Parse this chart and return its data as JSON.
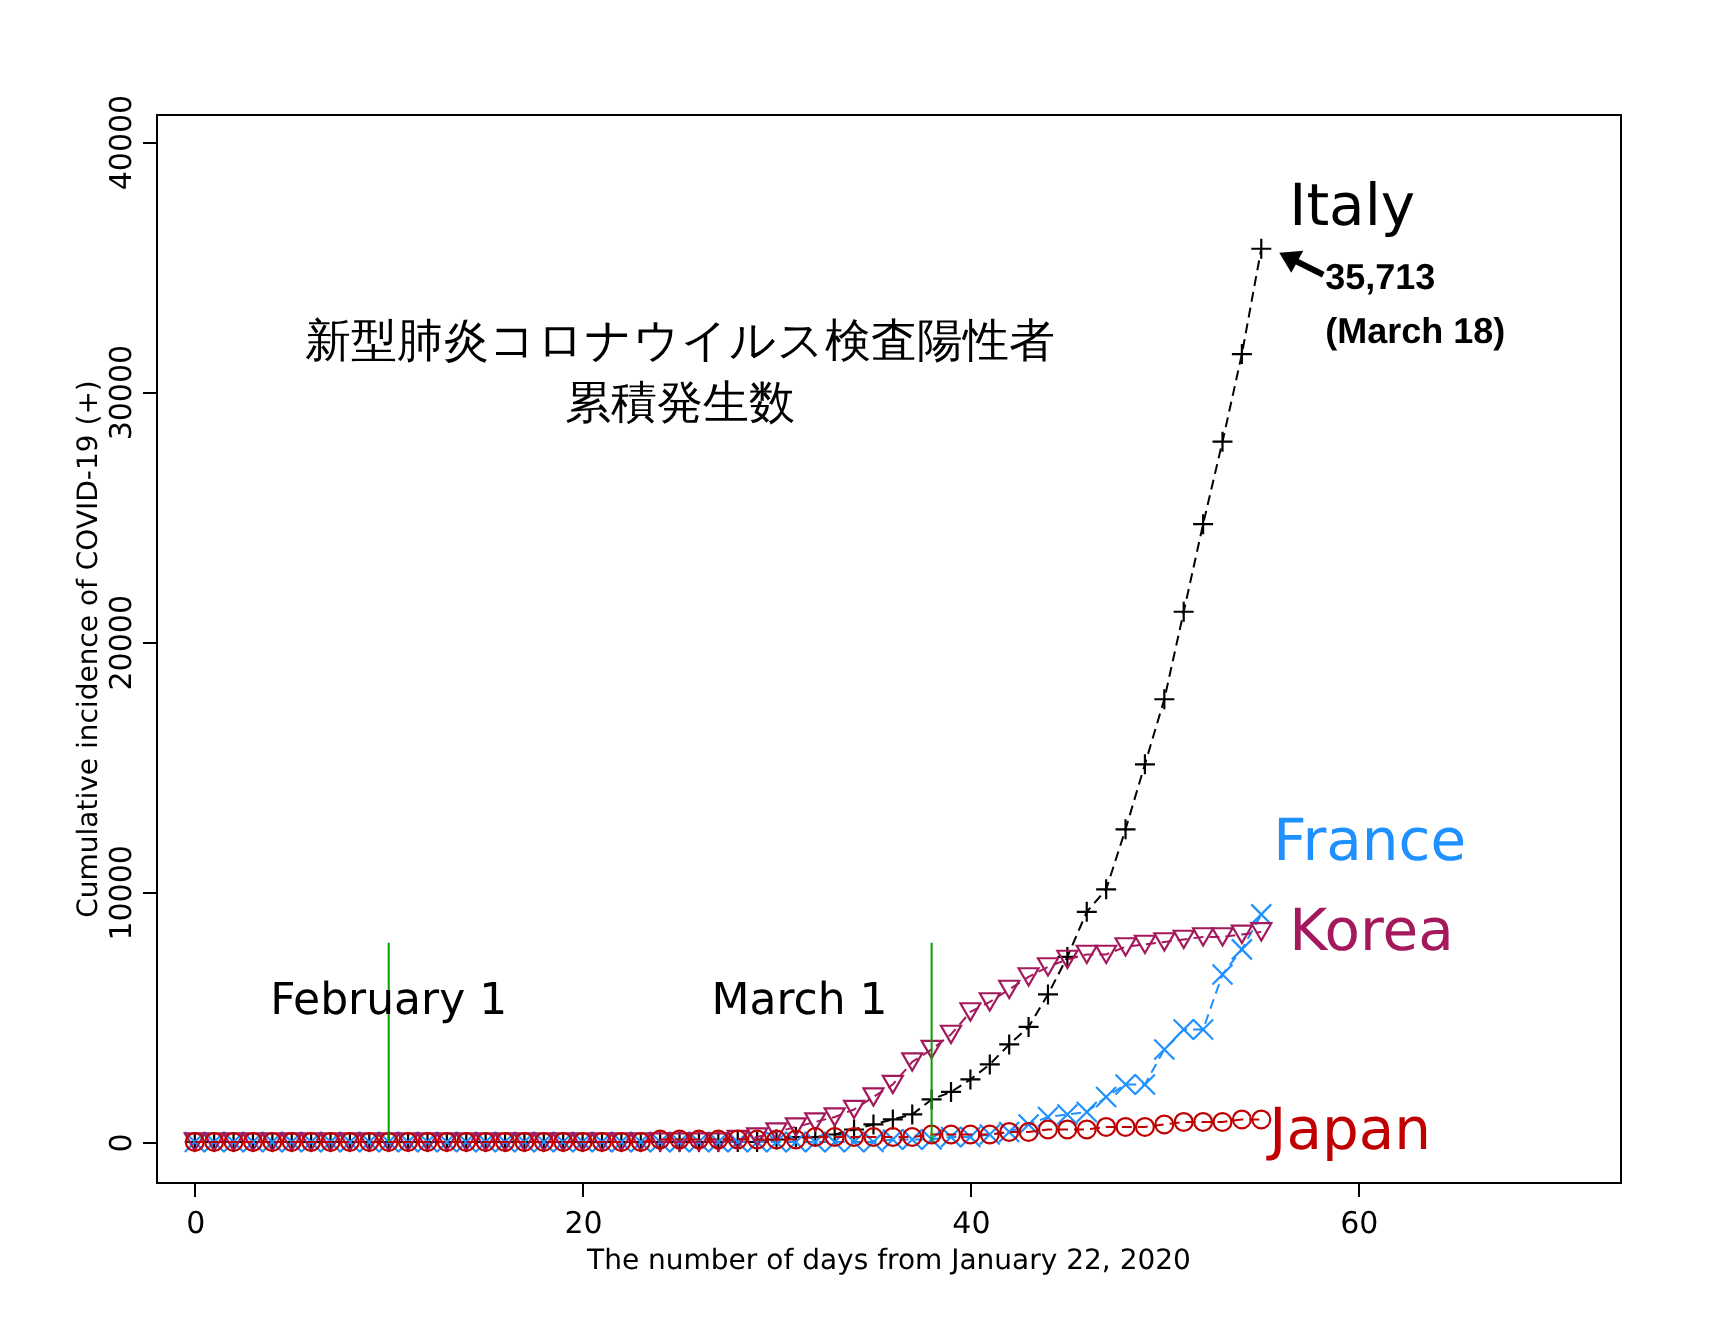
{
  "chart_data": {
    "type": "line",
    "title": "新型肺炎コロナウイルス検査陽性者",
    "subtitle": "累積発生数",
    "xlabel": "The number of days from January 22, 2020",
    "ylabel": "Cumulative incidence of COVID-19 (+)",
    "x": [
      0,
      1,
      2,
      3,
      4,
      5,
      6,
      7,
      8,
      9,
      10,
      11,
      12,
      13,
      14,
      15,
      16,
      17,
      18,
      19,
      20,
      21,
      22,
      23,
      24,
      25,
      26,
      27,
      28,
      29,
      30,
      31,
      32,
      33,
      34,
      35,
      36,
      37,
      38,
      39,
      40,
      41,
      42,
      43,
      44,
      45,
      46,
      47,
      48,
      49,
      50,
      51,
      52,
      53,
      54,
      55
    ],
    "series": [
      {
        "name": "Italy",
        "color": "#000000",
        "marker": "cross",
        "line_style": "dashed",
        "values": [
          0,
          0,
          0,
          0,
          0,
          0,
          0,
          0,
          0,
          0,
          0,
          0,
          0,
          0,
          0,
          0,
          0,
          0,
          0,
          0,
          0,
          0,
          0,
          0,
          0,
          0,
          0,
          0,
          0,
          0,
          100,
          200,
          200,
          300,
          500,
          700,
          900,
          1100,
          1700,
          2000,
          2500,
          3100,
          3900,
          4600,
          5900,
          7400,
          9200,
          10100,
          12500,
          15100,
          17700,
          21200,
          24700,
          28000,
          31500,
          35713
        ]
      },
      {
        "name": "France",
        "color": "#1e90ff",
        "marker": "x",
        "line_style": "dashed",
        "values": [
          0,
          0,
          0,
          0,
          0,
          0,
          0,
          0,
          0,
          0,
          0,
          0,
          0,
          0,
          0,
          0,
          0,
          0,
          0,
          0,
          0,
          0,
          0,
          0,
          0,
          0,
          0,
          0,
          0,
          0,
          0,
          0,
          0,
          0,
          0,
          0,
          100,
          100,
          100,
          200,
          200,
          300,
          400,
          700,
          1000,
          1100,
          1200,
          1800,
          2300,
          2300,
          3700,
          4500,
          4500,
          6700,
          7700,
          9100
        ]
      },
      {
        "name": "Korea",
        "color": "#a3195b",
        "marker": "triangle-down",
        "line_style": "dashed",
        "values": [
          0,
          0,
          0,
          0,
          0,
          0,
          0,
          0,
          0,
          0,
          0,
          0,
          0,
          0,
          0,
          0,
          0,
          0,
          0,
          0,
          0,
          0,
          0,
          0,
          0,
          0,
          0,
          0,
          100,
          200,
          400,
          600,
          800,
          1000,
          1300,
          1800,
          2300,
          3200,
          3700,
          4300,
          5200,
          5600,
          6100,
          6600,
          7000,
          7300,
          7500,
          7500,
          7800,
          7900,
          8000,
          8100,
          8200,
          8200,
          8300,
          8400
        ]
      },
      {
        "name": "Japan",
        "color": "#c00000",
        "marker": "circle",
        "line_style": "dashed",
        "values": [
          0,
          0,
          0,
          0,
          0,
          0,
          0,
          0,
          0,
          0,
          0,
          0,
          0,
          0,
          0,
          0,
          0,
          0,
          0,
          0,
          0,
          0,
          0,
          0,
          100,
          100,
          100,
          100,
          100,
          100,
          100,
          100,
          200,
          200,
          200,
          200,
          200,
          200,
          300,
          300,
          300,
          300,
          400,
          400,
          500,
          500,
          500,
          600,
          600,
          600,
          700,
          800,
          800,
          800,
          900,
          900
        ]
      }
    ],
    "xlim": [
      -2,
      73.5
    ],
    "xticks": [
      0,
      20,
      40,
      60
    ],
    "ylim": [
      -1600,
      41100
    ],
    "yticks": [
      0,
      10000,
      20000,
      30000,
      40000
    ],
    "grid": false,
    "ref_lines": [
      {
        "axis": "x",
        "value": 10,
        "label": "February 1",
        "color": "#00a000"
      },
      {
        "axis": "x",
        "value": 38,
        "label": "March 1",
        "color": "#00a000"
      }
    ],
    "annotations": [
      {
        "text": "35,713\n(March 18)",
        "x": 55,
        "y": 35713
      }
    ]
  }
}
